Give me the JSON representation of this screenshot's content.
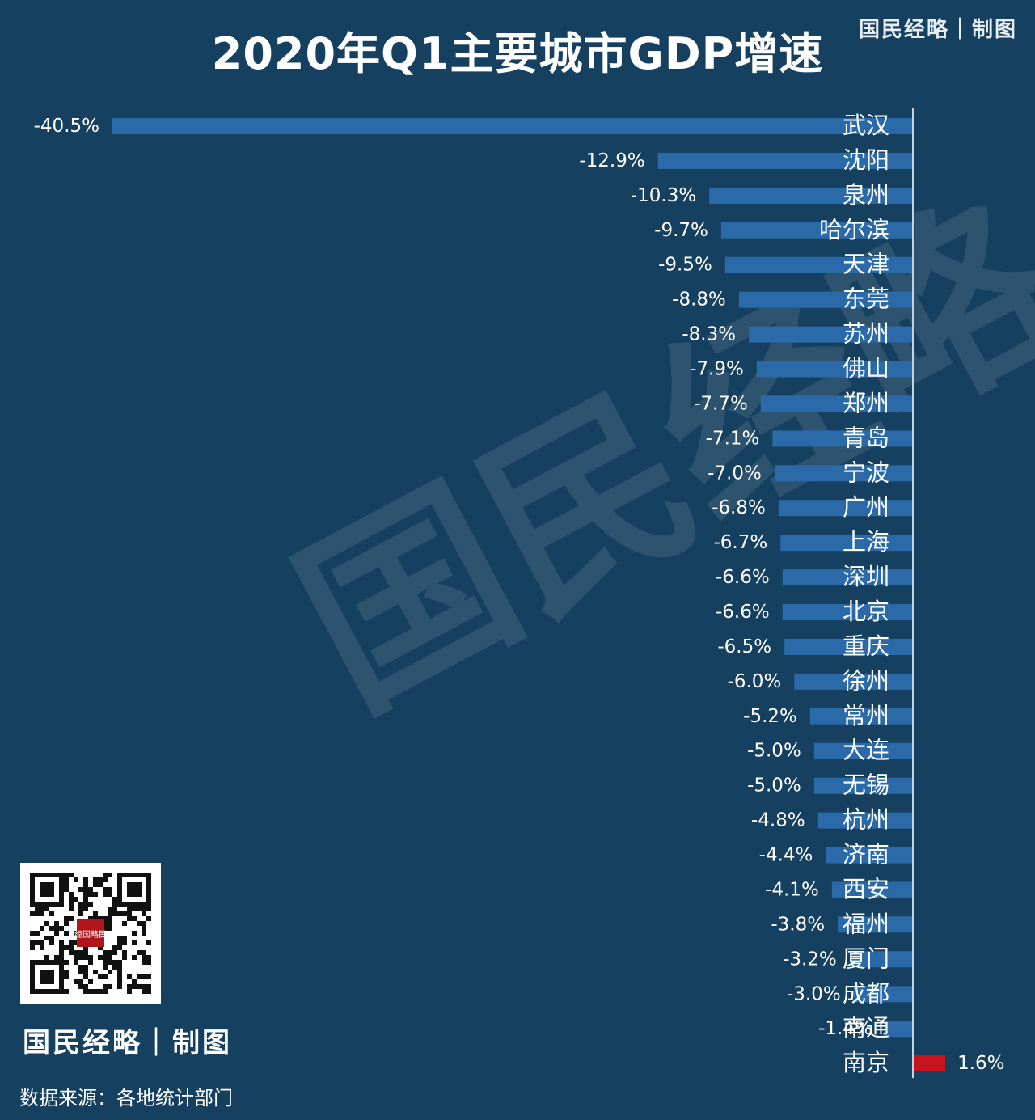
{
  "title": "2020年Q1主要城市GDP增速",
  "brand": "国民经略｜制图",
  "watermark": "国民经略",
  "source": "数据来源：各地统计部门",
  "qr_stamp": "经国略民",
  "colors": {
    "background": "#16405f",
    "bar_negative": "#2a6aa8",
    "bar_positive": "#c8141e",
    "axis": "#c8d2dc",
    "text": "#ffffff"
  },
  "chart_data": {
    "type": "bar",
    "orientation": "horizontal",
    "title": "2020年Q1主要城市GDP增速",
    "xlabel": "",
    "ylabel": "",
    "xlim": [
      -40.5,
      1.6
    ],
    "grid": false,
    "categories": [
      "武汉",
      "沈阳",
      "泉州",
      "哈尔滨",
      "天津",
      "东莞",
      "苏州",
      "佛山",
      "郑州",
      "青岛",
      "宁波",
      "广州",
      "上海",
      "深圳",
      "北京",
      "重庆",
      "徐州",
      "常州",
      "大连",
      "无锡",
      "杭州",
      "济南",
      "西安",
      "福州",
      "厦门",
      "成都",
      "南通",
      "南京"
    ],
    "values": [
      -40.5,
      -12.9,
      -10.3,
      -9.7,
      -9.5,
      -8.8,
      -8.3,
      -7.9,
      -7.7,
      -7.1,
      -7.0,
      -6.8,
      -6.7,
      -6.6,
      -6.6,
      -6.5,
      -6.0,
      -5.2,
      -5.0,
      -5.0,
      -4.8,
      -4.4,
      -4.1,
      -3.8,
      -3.2,
      -3.0,
      -1.4,
      1.6
    ],
    "labels": [
      "-40.5%",
      "-12.9%",
      "-10.3%",
      "-9.7%",
      "-9.5%",
      "-8.8%",
      "-8.3%",
      "-7.9%",
      "-7.7%",
      "-7.1%",
      "-7.0%",
      "-6.8%",
      "-6.7%",
      "-6.6%",
      "-6.6%",
      "-6.5%",
      "-6.0%",
      "-5.2%",
      "-5.0%",
      "-5.0%",
      "-4.8%",
      "-4.4%",
      "-4.1%",
      "-3.8%",
      "-3.2%",
      "-3.0%",
      "-1.4%",
      "1.6%"
    ]
  }
}
